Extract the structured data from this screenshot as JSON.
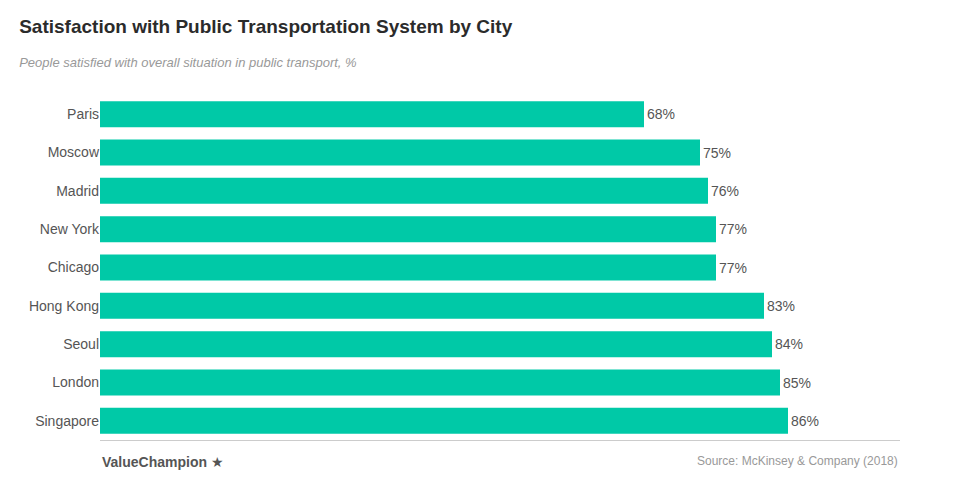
{
  "chart_data": {
    "type": "bar",
    "orientation": "horizontal",
    "title": "Satisfaction with Public Transportation System by City",
    "subtitle": "People satisfied with overall situation in public transport, %",
    "annotations": [
      "Source: McKinsey & Company (2018)",
      "ValueChampion ★"
    ],
    "categories": [
      "Paris",
      "Moscow",
      "Madrid",
      "New York",
      "Chicago",
      "Hong Kong",
      "Seoul",
      "London",
      "Singapore"
    ],
    "values": [
      68,
      75,
      76,
      77,
      77,
      83,
      84,
      85,
      86
    ],
    "value_labels": [
      "68%",
      "75%",
      "76%",
      "77%",
      "77%",
      "83%",
      "84%",
      "85%",
      "86%"
    ],
    "data_labels": true,
    "color": "#00C9A7",
    "xlim": [
      0,
      100
    ],
    "grid": false,
    "tick_labels": "y"
  }
}
